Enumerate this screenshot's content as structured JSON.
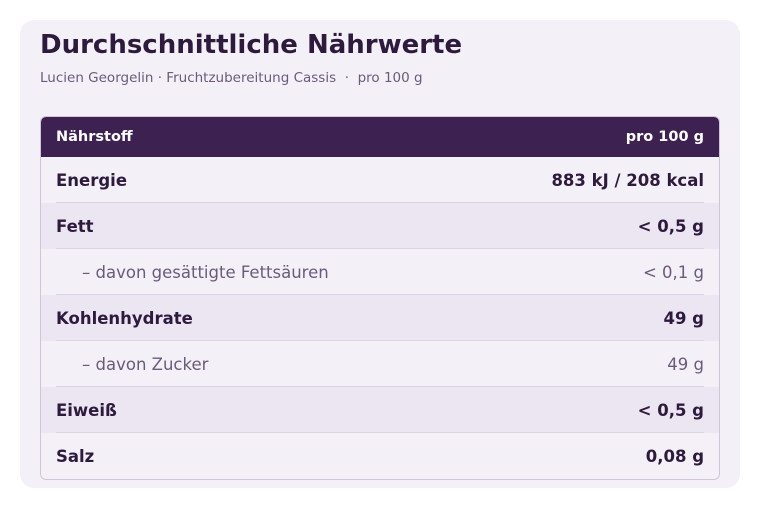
{
  "header": {
    "title": "Durchschnittliche Nährwerte",
    "subtitle": "Lucien Georgelin · Fruchtzubereitung Cassis  ·  pro 100 g"
  },
  "table": {
    "columns": [
      "Nährstoff",
      "pro 100 g"
    ],
    "rows": [
      [
        "Energie",
        "883 kJ / 208 kcal"
      ],
      [
        "Fett",
        "< 0,5 g"
      ],
      [
        "– davon gesättigte Fettsäuren",
        "< 0,1 g"
      ],
      [
        "Kohlenhydrate",
        "49 g"
      ],
      [
        "– davon Zucker",
        "49 g"
      ],
      [
        "Eiweiß",
        "< 0,5 g"
      ],
      [
        "Salz",
        "0,08 g"
      ]
    ]
  }
}
